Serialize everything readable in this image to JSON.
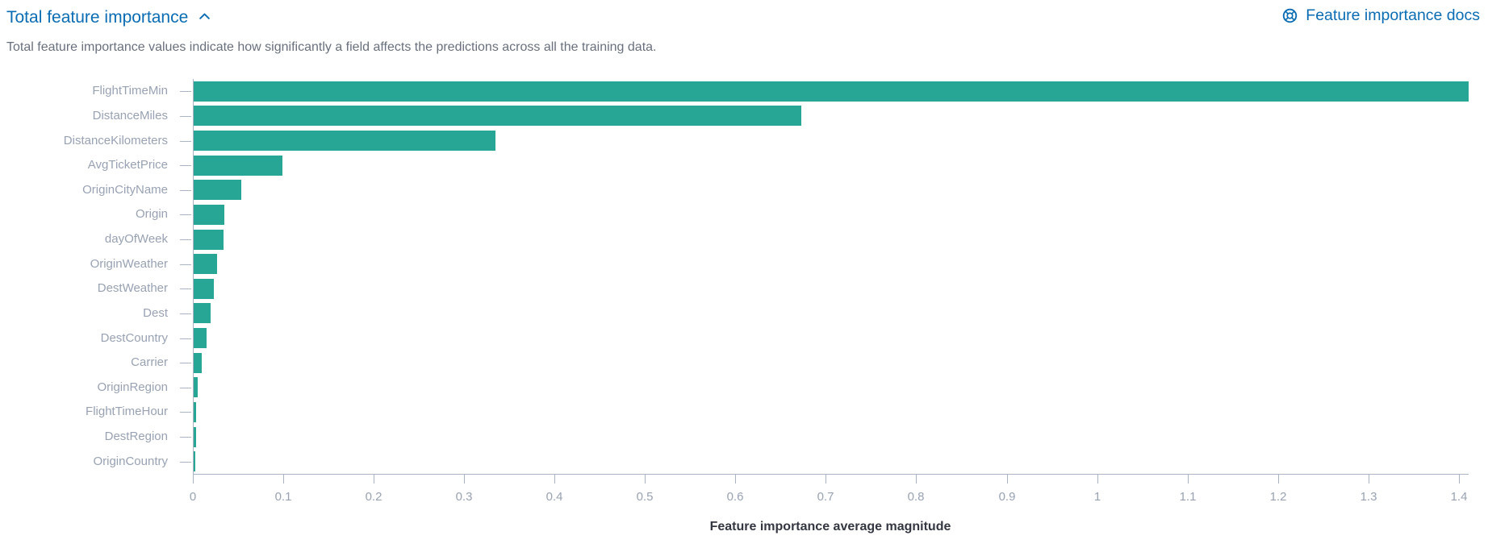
{
  "header": {
    "title": "Total feature importance",
    "docs_link_label": "Feature importance docs",
    "description": "Total feature importance values indicate how significantly a field affects the predictions across all the training data."
  },
  "colors": {
    "link_blue": "#0a6cb3",
    "bar_teal": "#27a695",
    "axis_line": "#abb4c4",
    "tick_label": "#98a2b3",
    "axis_title_text": "#343741",
    "description_text": "#69707d"
  },
  "icons": {
    "collapse": "chevron-up",
    "docs": "lifebuoy-help"
  },
  "chart_data": {
    "type": "bar",
    "orientation": "horizontal",
    "title": "",
    "xlabel": "Feature importance average magnitude",
    "ylabel": "",
    "xlim": [
      0,
      1.41
    ],
    "xtick_labels": [
      "0",
      "0.1",
      "0.2",
      "0.3",
      "0.4",
      "0.5",
      "0.6",
      "0.7",
      "0.8",
      "0.9",
      "1",
      "1.1",
      "1.2",
      "1.3",
      "1.4"
    ],
    "grid": false,
    "legend": false,
    "categories": [
      "FlightTimeMin",
      "DistanceMiles",
      "DistanceKilometers",
      "AvgTicketPrice",
      "OriginCityName",
      "Origin",
      "dayOfWeek",
      "OriginWeather",
      "DestWeather",
      "Dest",
      "DestCountry",
      "Carrier",
      "OriginRegion",
      "FlightTimeHour",
      "DestRegion",
      "OriginCountry"
    ],
    "values": [
      1.41,
      0.672,
      0.334,
      0.098,
      0.053,
      0.034,
      0.033,
      0.026,
      0.022,
      0.019,
      0.014,
      0.009,
      0.0045,
      0.003,
      0.0024,
      0.0015
    ]
  }
}
